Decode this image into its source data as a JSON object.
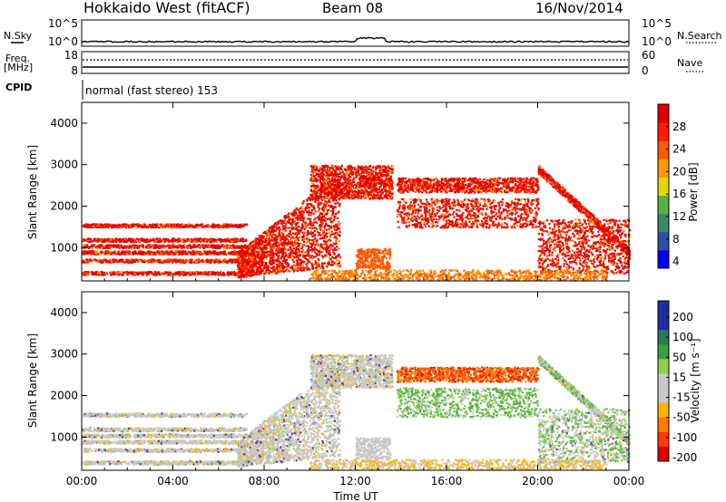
{
  "header": {
    "station": "Hokkaido West (fitACF)",
    "beam": "Beam 08",
    "date": "16/Nov/2014"
  },
  "top_panels": {
    "nsky_label": "N.Sky",
    "nsearch_label": "N.Search",
    "nsky_ticks": [
      "10^5",
      "10^0"
    ],
    "nsearch_ticks": [
      "10^5",
      "10^0"
    ],
    "freq_label_1": "Freq.",
    "freq_label_2": "[MHz]",
    "freq_ticks": [
      "18",
      "8"
    ],
    "nave_label": "Nave",
    "nave_ticks": [
      "60",
      "0"
    ],
    "cpid_label": "CPID",
    "cpid_text": "normal (fast stereo) 153"
  },
  "colors": {
    "power": [
      "#0000ff",
      "#2a4fa6",
      "#3a8a6a",
      "#55b23c",
      "#e8d400",
      "#ff9a00",
      "#ff5a00",
      "#ff1a00",
      "#e00000"
    ],
    "velocity_pos": [
      "#1c2fa0",
      "#2a7a5a",
      "#3aa040",
      "#88d44a"
    ],
    "velocity_neg": [
      "#c8c8c8",
      "#ffb400",
      "#ff7a00",
      "#ff3a00",
      "#e00000"
    ],
    "grey_scatter": "#c0c0c0"
  },
  "chart_data": [
    {
      "type": "heatmap",
      "name": "power",
      "xlabel": "",
      "ylabel": "Slant Range [km]",
      "x_ticks": [
        "00:00",
        "04:00",
        "08:00",
        "12:00",
        "16:00",
        "20:00",
        "00:00"
      ],
      "xlim_hours": [
        0,
        24
      ],
      "ylim": [
        200,
        4500
      ],
      "y_ticks": [
        1000,
        2000,
        3000,
        4000
      ],
      "colorbar_label": "Power [dB]",
      "colorbar_ticks": [
        28,
        24,
        20,
        16,
        12,
        8,
        4
      ]
    },
    {
      "type": "heatmap",
      "name": "velocity",
      "xlabel": "Time UT",
      "ylabel": "Slant Range [km]",
      "x_ticks": [
        "00:00",
        "04:00",
        "08:00",
        "12:00",
        "16:00",
        "20:00",
        "00:00"
      ],
      "xlim_hours": [
        0,
        24
      ],
      "ylim": [
        200,
        4500
      ],
      "y_ticks": [
        1000,
        2000,
        3000,
        4000
      ],
      "colorbar_label": "Velocity [m s⁻¹]",
      "colorbar_ticks": [
        200,
        100,
        50,
        15,
        -15,
        -50,
        -100,
        -200
      ]
    }
  ]
}
